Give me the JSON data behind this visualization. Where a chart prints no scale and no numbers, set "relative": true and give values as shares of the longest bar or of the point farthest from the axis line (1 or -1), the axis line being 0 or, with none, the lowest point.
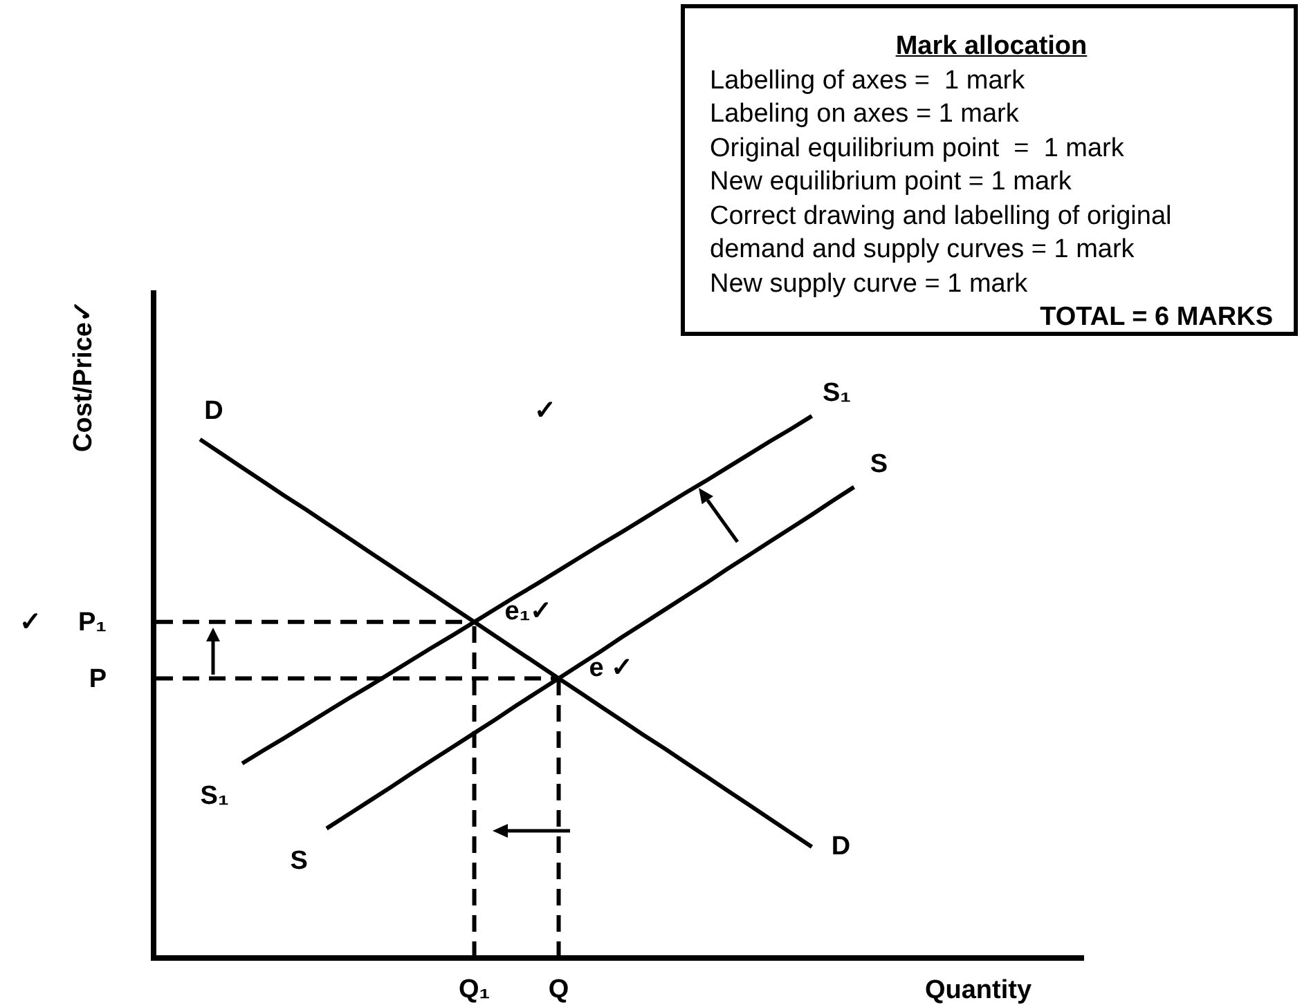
{
  "chart_data": [
    {
      "type": "line",
      "relative": true,
      "ylabel": "Cost/Price✓",
      "xlabel": "Quantity",
      "marker": "none",
      "line_style": "solid",
      "categories": [
        null,
        null,
        null,
        null,
        null,
        null,
        null,
        null,
        null,
        null,
        null,
        null,
        null,
        null,
        null,
        "Q₁",
        null,
        null,
        null,
        "Q",
        null,
        null,
        null,
        null,
        null,
        null,
        null,
        null,
        null,
        null,
        null,
        null,
        null,
        null,
        null,
        null,
        null,
        null,
        null,
        null,
        null,
        null,
        null,
        null
      ],
      "series": [
        {
          "name": "D",
          "color": "#000000",
          "values": [
            null,
            null,
            0.957,
            0.931,
            0.905,
            0.879,
            0.853,
            0.828,
            0.802,
            0.776,
            0.75,
            0.724,
            0.698,
            0.672,
            0.646,
            0.62,
            0.594,
            0.568,
            0.542,
            0.516,
            0.49,
            0.464,
            0.438,
            0.412,
            0.387,
            0.361,
            0.335,
            0.309,
            0.283,
            0.257,
            0.231,
            0.205,
            null,
            null,
            null,
            null,
            null,
            null,
            null,
            null,
            null,
            null,
            null,
            null
          ]
        },
        {
          "name": "S₁",
          "color": "#000000",
          "values": [
            null,
            null,
            null,
            null,
            0.359,
            0.383,
            0.406,
            0.43,
            0.454,
            0.478,
            0.501,
            0.525,
            0.549,
            0.573,
            0.596,
            0.62,
            0.644,
            0.668,
            0.691,
            0.715,
            0.739,
            0.763,
            0.786,
            0.81,
            0.834,
            0.858,
            0.881,
            0.905,
            0.929,
            0.953,
            0.976,
            1,
            null,
            null,
            null,
            null,
            null,
            null,
            null,
            null,
            null,
            null,
            null,
            null
          ]
        },
        {
          "name": "S",
          "color": "#000000",
          "values": [
            null,
            null,
            null,
            null,
            null,
            null,
            null,
            null,
            0.239,
            0.264,
            0.289,
            0.314,
            0.34,
            0.365,
            0.39,
            0.415,
            0.44,
            0.466,
            0.491,
            0.516,
            0.541,
            0.566,
            0.592,
            0.617,
            0.642,
            0.667,
            0.692,
            0.718,
            0.743,
            0.768,
            0.793,
            0.818,
            0.844,
            0.869,
            null,
            null,
            null,
            null,
            null,
            null,
            null,
            null,
            null,
            null
          ]
        }
      ],
      "ref_lines": [
        {
          "axis": "y",
          "value": 0.62,
          "label": "✓     P₁",
          "color": "#000000",
          "line_style": "dashed"
        },
        {
          "axis": "y",
          "value": 0.516,
          "label": "P",
          "color": "#000000",
          "line_style": "dashed"
        },
        {
          "axis": "x",
          "value": "Q₁",
          "color": "#000000",
          "line_style": "dashed"
        },
        {
          "axis": "x",
          "value": "Q",
          "color": "#000000",
          "line_style": "dashed"
        }
      ],
      "annotations": [
        "✓",
        {
          "text": "e₁✓",
          "x": "Q₁",
          "y": 0.62
        },
        {
          "text": "e ✓",
          "x": "Q",
          "y": 0.516
        }
      ]
    },
    {
      "type": "other",
      "title": "Mark allocation",
      "annotations": [
        "Labelling of axes =  1 mark",
        "Labeling on axes = 1 mark",
        "Original equilibrium point  =  1 mark",
        "New equilibrium point = 1 mark",
        "Correct drawing and labelling of original",
        "demand and supply curves = 1 mark",
        "New supply curve = 1 mark",
        "TOTAL = 6 MARKS"
      ]
    }
  ]
}
